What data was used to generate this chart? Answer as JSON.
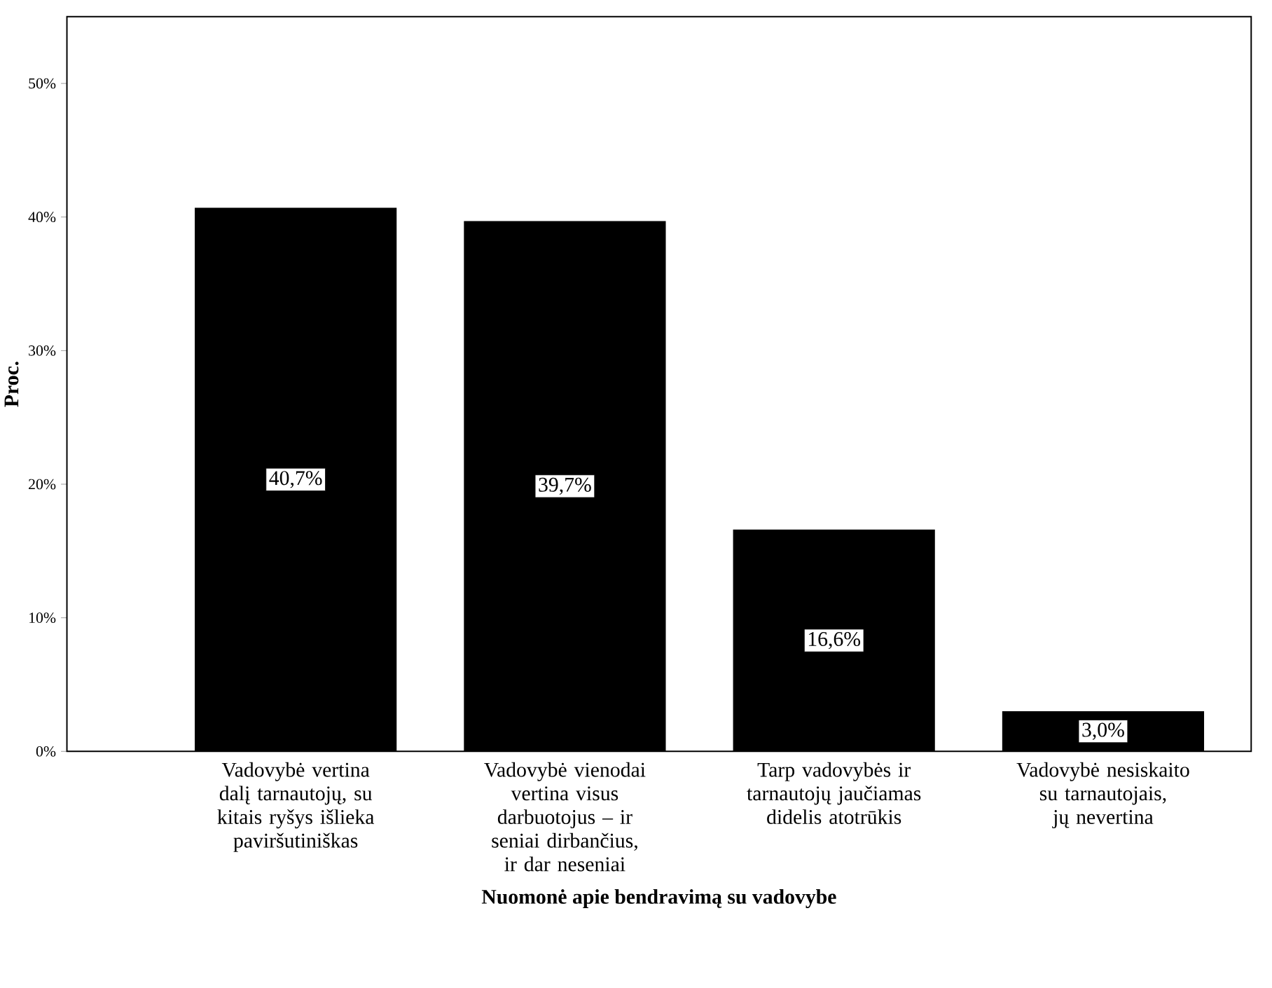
{
  "chart_data": {
    "type": "bar",
    "xlabel": "Nuomonė apie bendravimą su vadovybe",
    "ylabel": "Proc.",
    "categories": [
      "Vadovybė vertina dalį tarnautojų, su kitais ryšys išlieka paviršutiniškas",
      "Vadovybė vienodai vertina visus darbuotojus – ir seniai dirbančius, ir dar neseniai",
      "Tarp vadovybės ir tarnautojų jaučiamas didelis atotrūkis",
      "Vadovybė nesiskaito su tarnautojais, jų nevertina"
    ],
    "values": [
      40.7,
      39.7,
      16.6,
      3.0
    ],
    "value_labels": [
      "40,7%",
      "39,7%",
      "16,6%",
      "3,0%"
    ],
    "color": "#000000",
    "ylim": [
      0,
      55
    ],
    "yticks": [
      {
        "value": 0,
        "label": "0%"
      },
      {
        "value": 10,
        "label": "10%"
      },
      {
        "value": 20,
        "label": "20%"
      },
      {
        "value": 30,
        "label": "30%"
      },
      {
        "value": 40,
        "label": "40%"
      },
      {
        "value": 50,
        "label": "50%"
      }
    ],
    "grid": false
  }
}
